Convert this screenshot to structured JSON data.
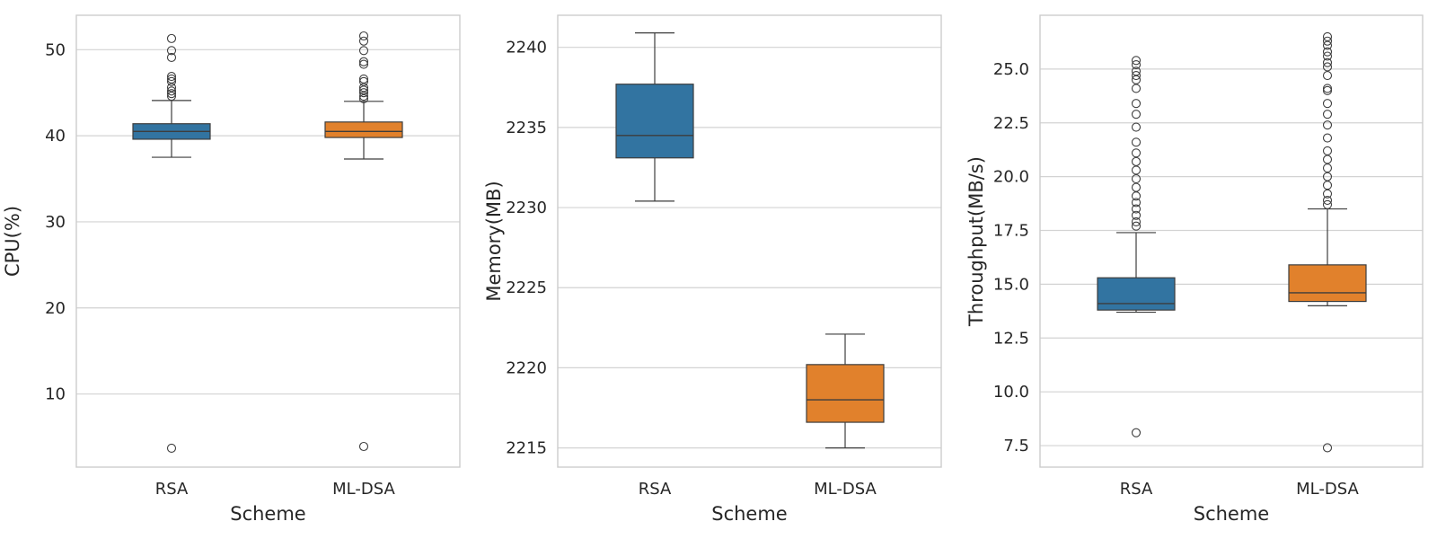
{
  "chart_data": [
    {
      "type": "box",
      "xlabel": "Scheme",
      "ylabel": "CPU(%)",
      "categories": [
        "RSA",
        "ML-DSA"
      ],
      "ylim": [
        1.5,
        54
      ],
      "yticks": [
        10,
        20,
        30,
        40,
        50
      ],
      "ytick_labels": [
        "10",
        "20",
        "30",
        "40",
        "50"
      ],
      "grid": true,
      "boxes": [
        {
          "name": "RSA",
          "color": "#3274a1",
          "whislo": 37.5,
          "q1": 39.6,
          "median": 40.5,
          "q3": 41.4,
          "whishi": 44.1,
          "fliers": [
            51.3,
            49.9,
            49.1,
            46.9,
            46.6,
            46.3,
            45.6,
            45.2,
            44.9,
            44.6,
            3.7
          ]
        },
        {
          "name": "ML-DSA",
          "color": "#e1812c",
          "whislo": 37.3,
          "q1": 39.8,
          "median": 40.5,
          "q3": 41.6,
          "whishi": 44.0,
          "fliers": [
            51.6,
            51.0,
            49.9,
            48.6,
            48.3,
            46.6,
            46.3,
            45.6,
            45.3,
            45.0,
            44.6,
            44.3,
            3.9
          ]
        }
      ]
    },
    {
      "type": "box",
      "xlabel": "Scheme",
      "ylabel": "Memory(MB)",
      "categories": [
        "RSA",
        "ML-DSA"
      ],
      "ylim": [
        2213.8,
        2242
      ],
      "yticks": [
        2215,
        2220,
        2225,
        2230,
        2235,
        2240
      ],
      "ytick_labels": [
        "2215",
        "2220",
        "2225",
        "2230",
        "2235",
        "2240"
      ],
      "grid": true,
      "boxes": [
        {
          "name": "RSA",
          "color": "#3274a1",
          "whislo": 2230.4,
          "q1": 2233.1,
          "median": 2234.5,
          "q3": 2237.7,
          "whishi": 2240.9,
          "fliers": []
        },
        {
          "name": "ML-DSA",
          "color": "#e1812c",
          "whislo": 2215.0,
          "q1": 2216.6,
          "median": 2218.0,
          "q3": 2220.2,
          "whishi": 2222.1,
          "fliers": []
        }
      ]
    },
    {
      "type": "box",
      "xlabel": "Scheme",
      "ylabel": "Throughput(MB/s)",
      "categories": [
        "RSA",
        "ML-DSA"
      ],
      "ylim": [
        6.5,
        27.5
      ],
      "yticks": [
        7.5,
        10.0,
        12.5,
        15.0,
        17.5,
        20.0,
        22.5,
        25.0
      ],
      "ytick_labels": [
        "7.5",
        "10.0",
        "12.5",
        "15.0",
        "17.5",
        "20.0",
        "22.5",
        "25.0"
      ],
      "grid": true,
      "boxes": [
        {
          "name": "RSA",
          "color": "#3274a1",
          "whislo": 13.7,
          "q1": 13.8,
          "median": 14.1,
          "q3": 15.3,
          "whishi": 17.4,
          "fliers": [
            25.4,
            25.2,
            24.9,
            24.7,
            24.5,
            24.1,
            23.4,
            22.9,
            22.3,
            21.6,
            21.1,
            20.7,
            20.3,
            19.9,
            19.5,
            19.1,
            18.8,
            18.5,
            18.2,
            17.9,
            17.7,
            8.1
          ]
        },
        {
          "name": "ML-DSA",
          "color": "#e1812c",
          "whislo": 14.0,
          "q1": 14.2,
          "median": 14.6,
          "q3": 15.9,
          "whishi": 18.5,
          "fliers": [
            26.5,
            26.3,
            26.1,
            25.8,
            25.6,
            25.3,
            25.1,
            24.7,
            24.1,
            24.0,
            23.4,
            22.9,
            22.4,
            21.8,
            21.2,
            20.8,
            20.4,
            20.0,
            19.6,
            19.2,
            18.9,
            18.7,
            7.4
          ]
        }
      ]
    }
  ]
}
